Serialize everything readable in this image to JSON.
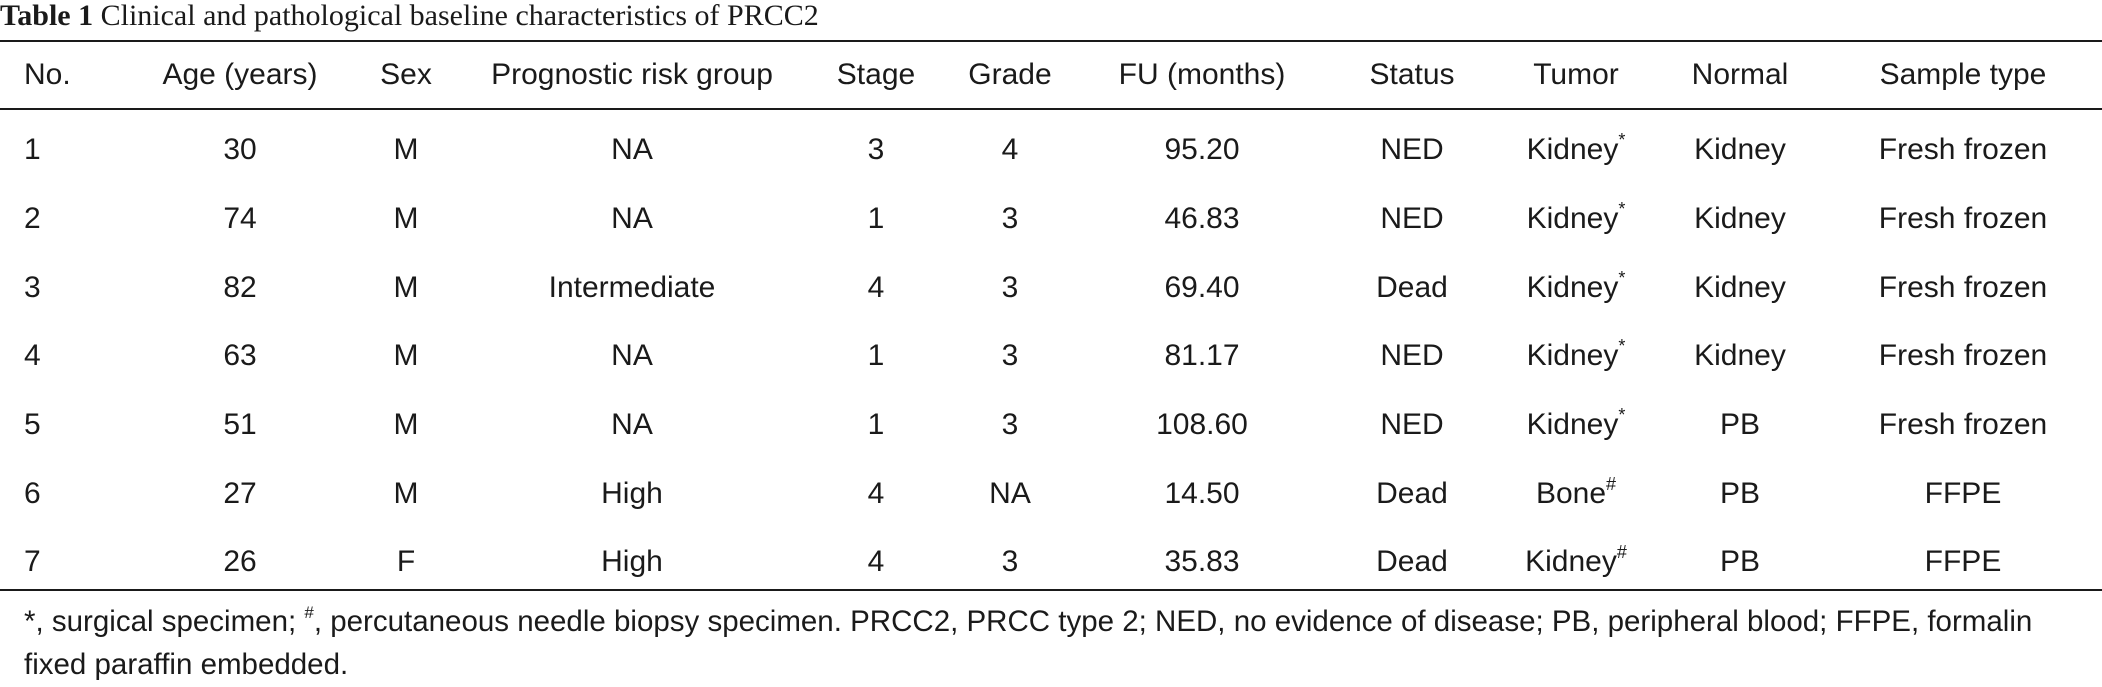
{
  "table": {
    "caption_label": "Table 1",
    "caption_text": " Clinical and pathological baseline characteristics of PRCC2",
    "headers": [
      "No.",
      "Age (years)",
      "Sex",
      "Prognostic risk group",
      "Stage",
      "Grade",
      "FU (months)",
      "Status",
      "Tumor",
      "Normal",
      "Sample type"
    ],
    "rows": [
      {
        "no": "1",
        "age": "30",
        "sex": "M",
        "risk": "NA",
        "stage": "3",
        "grade": "4",
        "fu": "95.20",
        "status": "NED",
        "tumor": "Kidney",
        "tumor_mark": "*",
        "normal": "Kidney",
        "sample": "Fresh frozen"
      },
      {
        "no": "2",
        "age": "74",
        "sex": "M",
        "risk": "NA",
        "stage": "1",
        "grade": "3",
        "fu": "46.83",
        "status": "NED",
        "tumor": "Kidney",
        "tumor_mark": "*",
        "normal": "Kidney",
        "sample": "Fresh frozen"
      },
      {
        "no": "3",
        "age": "82",
        "sex": "M",
        "risk": "Intermediate",
        "stage": "4",
        "grade": "3",
        "fu": "69.40",
        "status": "Dead",
        "tumor": "Kidney",
        "tumor_mark": "*",
        "normal": "Kidney",
        "sample": "Fresh frozen"
      },
      {
        "no": "4",
        "age": "63",
        "sex": "M",
        "risk": "NA",
        "stage": "1",
        "grade": "3",
        "fu": "81.17",
        "status": "NED",
        "tumor": "Kidney",
        "tumor_mark": "*",
        "normal": "Kidney",
        "sample": "Fresh frozen"
      },
      {
        "no": "5",
        "age": "51",
        "sex": "M",
        "risk": "NA",
        "stage": "1",
        "grade": "3",
        "fu": "108.60",
        "status": "NED",
        "tumor": "Kidney",
        "tumor_mark": "*",
        "normal": "PB",
        "sample": "Fresh frozen"
      },
      {
        "no": "6",
        "age": "27",
        "sex": "M",
        "risk": "High",
        "stage": "4",
        "grade": "NA",
        "fu": "14.50",
        "status": "Dead",
        "tumor": "Bone",
        "tumor_mark": "#",
        "normal": "PB",
        "sample": "FFPE"
      },
      {
        "no": "7",
        "age": "26",
        "sex": "F",
        "risk": "High",
        "stage": "4",
        "grade": "3",
        "fu": "35.83",
        "status": "Dead",
        "tumor": "Kidney",
        "tumor_mark": "#",
        "normal": "PB",
        "sample": "FFPE"
      }
    ]
  },
  "footnote": {
    "mark1": "*",
    "text1": ", surgical specimen; ",
    "mark2": "#",
    "text2": ", percutaneous needle biopsy specimen. PRCC2, PRCC type 2; NED, no evidence of disease; PB, peripheral blood; FFPE, formalin fixed paraffin embedded."
  }
}
